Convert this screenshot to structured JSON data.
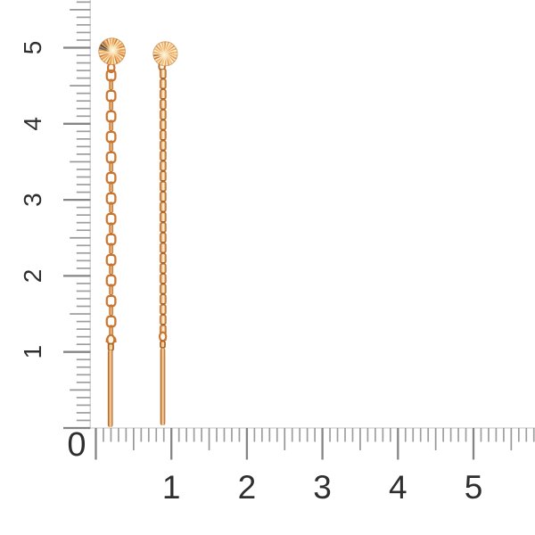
{
  "page": {
    "background": "#ffffff"
  },
  "ruler": {
    "origin_label": "0",
    "vertical": {
      "labels": [
        "5",
        "4",
        "3",
        "2",
        "1"
      ]
    },
    "horizontal": {
      "labels": [
        "1",
        "2",
        "3",
        "4",
        "5"
      ]
    },
    "colors": {
      "minor_tick": "#9e9e9e",
      "medium_tick": "#979797",
      "major_tick": "#858585",
      "baseline": "#d7d7d7",
      "label": "#2f2f2f"
    }
  },
  "earrings": {
    "colors": {
      "chain_outline": "#ca7630",
      "chain_edge_link": "#bf6f2e",
      "chain_edge_highlight": "#eeb97e",
      "chain_inner_stripe": "#f9eed6",
      "loop_fill": "#fdf6ea",
      "bar_gradient": [
        "#9d5520",
        "#c97f3a",
        "#f3c892",
        "#f7d6a6",
        "#d89050",
        "#a25c24"
      ]
    },
    "left": {
      "stud": "sunburst-disc",
      "disc_base": "#eeab62",
      "glow": "#fffce9",
      "ray_palette": [
        "#fbe3b2",
        "#e49a52",
        "#f6c98e",
        "#d37e30",
        "#fcf0d2",
        "#eaa55c"
      ],
      "ray_overrides": {
        "26": "#6e655b",
        "27": "#a08a67",
        "28": "#4d463e",
        "30": "#84796d"
      }
    },
    "right": {
      "stud": "sunburst-disc",
      "disc_base": "#f2be80",
      "glow": "#fff9e3",
      "ray_palette": [
        "#fdf0d0",
        "#f0b877",
        "#f9ddb0",
        "#e29b55",
        "#fbe8c2",
        "#eda763"
      ],
      "ray_overrides": {
        "19": "#c8792f",
        "21": "#b06828"
      }
    }
  }
}
